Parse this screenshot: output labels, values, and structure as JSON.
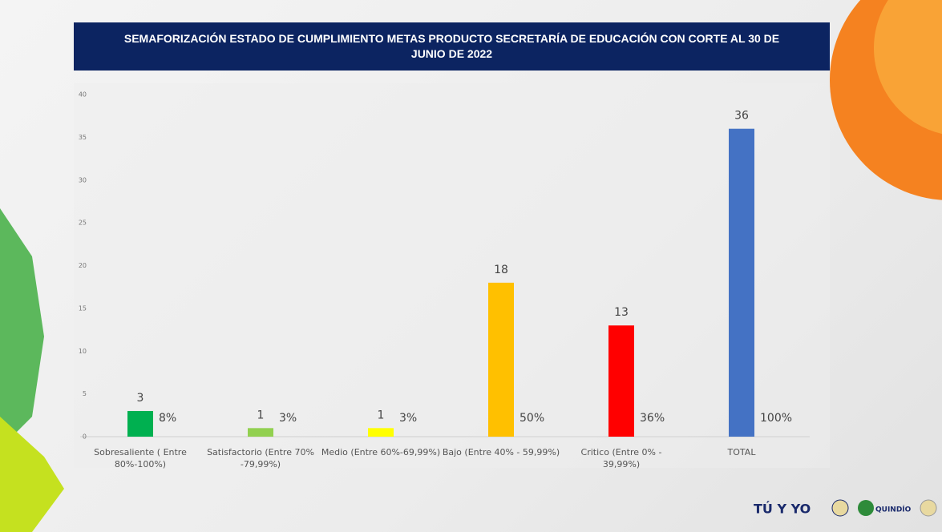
{
  "chart_data": {
    "type": "bar",
    "title": "SEMAFORIZACIÓN  ESTADO DE CUMPLIMIENTO METAS PRODUCTO SECRETARÍA DE  EDUCACIÓN CON CORTE AL  30 DE JUNIO DE 2022",
    "categories": [
      "Sobresaliente  ( Entre 80%-100%)",
      "Satisfactorio (Entre 70% -79,99%)",
      "Medio (Entre 60%-69,99%)",
      "Bajo (Entre 40% - 59,99%)",
      "Critico (Entre 0% - 39,99%)",
      "TOTAL"
    ],
    "values": [
      3,
      1,
      1,
      18,
      13,
      36
    ],
    "colors": [
      "#00b050",
      "#92d050",
      "#ffff00",
      "#ffc000",
      "#ff0000",
      "#4472c4"
    ],
    "percent_labels": [
      "8%",
      "3%",
      "3%",
      "50%",
      "36%",
      "100%"
    ],
    "ylim": [
      0,
      40
    ],
    "yticks": [
      0,
      5,
      10,
      15,
      20,
      25,
      30,
      35,
      40
    ],
    "grid": false
  },
  "footer": {
    "logos": [
      "TÚ Y YO",
      "QUINDÍO"
    ]
  }
}
